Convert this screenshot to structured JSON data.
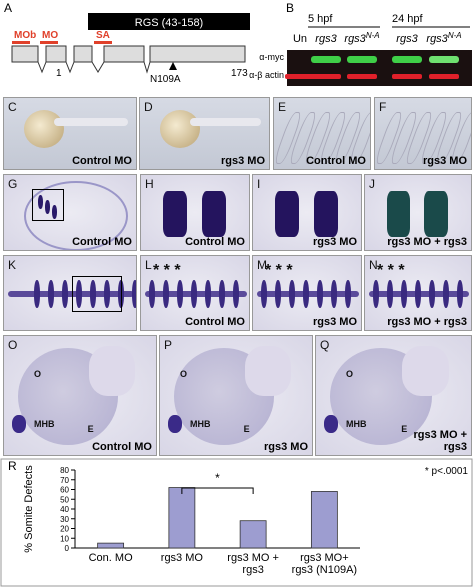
{
  "panel_a": {
    "letter": "A",
    "domain": "RGS (43-158)",
    "labels": [
      "MOb",
      "MO",
      "SA"
    ],
    "start": "1",
    "mutation": "N109A",
    "end": "173"
  },
  "panel_b": {
    "letter": "B",
    "timepoints": [
      "5 hpf",
      "24 hpf"
    ],
    "lanes": [
      {
        "text": "Un"
      },
      {
        "text": "rgs3"
      },
      {
        "text": "rgs3",
        "sup": "N-A"
      },
      {
        "text": "rgs3"
      },
      {
        "text": "rgs3",
        "sup": "N-A"
      }
    ],
    "blots": [
      "α-myc",
      "α-β actin"
    ]
  },
  "panels": [
    {
      "letter": "C",
      "caption": "Control MO"
    },
    {
      "letter": "D",
      "caption": "rgs3 MO"
    },
    {
      "letter": "E",
      "caption": "Control MO"
    },
    {
      "letter": "F",
      "caption": "rgs3 MO"
    },
    {
      "letter": "G",
      "caption": "Control MO"
    },
    {
      "letter": "H",
      "caption": "Control MO"
    },
    {
      "letter": "I",
      "caption": "rgs3 MO"
    },
    {
      "letter": "J",
      "caption": "rgs3 MO + rgs3"
    },
    {
      "letter": "K"
    },
    {
      "letter": "L",
      "caption": "Control MO",
      "marks": "* * *"
    },
    {
      "letter": "M",
      "caption": "rgs3 MO",
      "marks": "* * *"
    },
    {
      "letter": "N",
      "caption": "rgs3 MO + rgs3",
      "marks": "* * *"
    },
    {
      "letter": "O",
      "caption": "Control MO",
      "labels": [
        "O",
        "MHB",
        "E"
      ]
    },
    {
      "letter": "P",
      "caption": "rgs3 MO",
      "labels": [
        "O",
        "MHB",
        "E"
      ]
    },
    {
      "letter": "Q",
      "caption": "rgs3 MO + rgs3",
      "labels": [
        "O",
        "MHB",
        "E"
      ]
    }
  ],
  "chart_data": {
    "type": "bar",
    "letter": "R",
    "ylabel": "% Somite Defects",
    "categories": [
      "Con. MO",
      "rgs3 MO",
      "rgs3 MO + rgs3",
      "rgs3 MO+ rgs3 (N109A)"
    ],
    "values": [
      5,
      62,
      28,
      58
    ],
    "color": "#9d9dd0",
    "ylim": [
      0,
      80
    ],
    "yticks": [
      0,
      10,
      20,
      30,
      40,
      50,
      60,
      70,
      80
    ],
    "bracket_label": "*",
    "annotation": "* p<.0001"
  }
}
